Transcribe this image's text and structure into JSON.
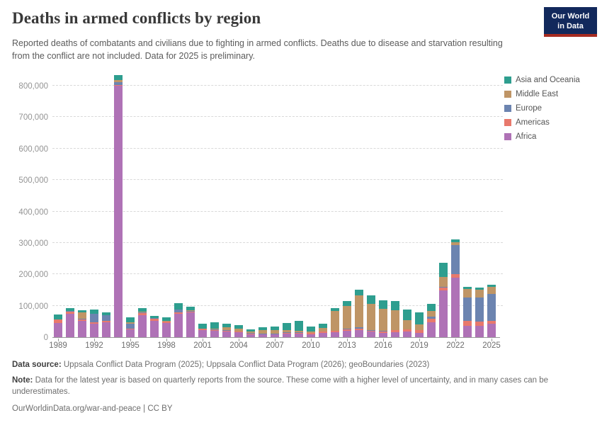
{
  "header": {
    "title": "Deaths in armed conflicts by region",
    "subtitle": "Reported deaths of combatants and civilians due to fighting in armed conflicts. Deaths due to disease and starvation resulting from the conflict are not included. Data for 2025 is preliminary.",
    "logo": {
      "line1": "Our World",
      "line2": "in Data",
      "bg_color": "#12295c",
      "accent_color": "#a62b21"
    }
  },
  "chart_data": {
    "type": "bar",
    "stacked": true,
    "title": "Deaths in armed conflicts by region",
    "xlabel": "",
    "ylabel": "",
    "ylim": [
      0,
      830000
    ],
    "grid": "horizontal-dashed",
    "legend_position": "top-right",
    "years": [
      1989,
      1990,
      1991,
      1992,
      1993,
      1994,
      1995,
      1996,
      1997,
      1998,
      1999,
      2000,
      2001,
      2002,
      2003,
      2004,
      2005,
      2006,
      2007,
      2008,
      2009,
      2010,
      2011,
      2012,
      2013,
      2014,
      2015,
      2016,
      2017,
      2018,
      2019,
      2020,
      2021,
      2022,
      2023,
      2024,
      2025
    ],
    "x_tick_labels": [
      "1989",
      "1992",
      "1995",
      "1998",
      "2001",
      "2004",
      "2007",
      "2010",
      "2013",
      "2016",
      "2019",
      "2022",
      "2025"
    ],
    "y_ticks": [
      0,
      100000,
      200000,
      300000,
      400000,
      500000,
      600000,
      700000,
      800000
    ],
    "y_tick_labels": [
      "0",
      "100,000",
      "200,000",
      "300,000",
      "400,000",
      "500,000",
      "600,000",
      "700,000",
      "800,000"
    ],
    "series": [
      {
        "name": "Africa",
        "color": "#AF72B6",
        "values": [
          45000,
          75000,
          52000,
          43000,
          47000,
          800000,
          25000,
          70000,
          52000,
          45000,
          75000,
          79000,
          22000,
          20000,
          18000,
          16000,
          10000,
          8000,
          8000,
          12000,
          12000,
          10000,
          13000,
          15000,
          21000,
          22000,
          17000,
          14000,
          16000,
          17000,
          14000,
          48000,
          148000,
          190000,
          37000,
          36000,
          42000
        ]
      },
      {
        "name": "Americas",
        "color": "#E8796C",
        "values": [
          11000,
          7000,
          5000,
          4000,
          4000,
          2000,
          3000,
          7000,
          7000,
          4000,
          5000,
          3000,
          4000,
          3000,
          3000,
          2000,
          2000,
          2000,
          2000,
          2000,
          2000,
          3000,
          4000,
          5000,
          4000,
          4000,
          4000,
          5000,
          6000,
          7000,
          8000,
          10000,
          10000,
          10000,
          14000,
          13000,
          11000
        ]
      },
      {
        "name": "Europe",
        "color": "#6C84B0",
        "values": [
          500,
          500,
          2000,
          27000,
          18000,
          10000,
          15000,
          2000,
          1000,
          1000,
          7000,
          2000,
          1000,
          1000,
          1000,
          1000,
          1000,
          1000,
          1000,
          1000,
          1000,
          1000,
          1000,
          1000,
          1000,
          5000,
          1000,
          1000,
          1000,
          1000,
          1000,
          7000,
          1000,
          93000,
          76000,
          77000,
          85000
        ]
      },
      {
        "name": "Middle East",
        "color": "#BF9566",
        "values": [
          1000,
          1000,
          20000,
          1000,
          1000,
          7000,
          4000,
          3000,
          1000,
          1000,
          1000,
          1000,
          1000,
          3000,
          10000,
          8000,
          5000,
          11000,
          12000,
          7000,
          5000,
          4000,
          12000,
          62000,
          74000,
          101000,
          85000,
          70000,
          62000,
          30000,
          17000,
          18000,
          33000,
          9000,
          26000,
          25000,
          21000
        ]
      },
      {
        "name": "Asia and Oceania",
        "color": "#2E9E8F",
        "values": [
          14000,
          10000,
          7000,
          13000,
          9000,
          14000,
          16000,
          11000,
          7000,
          13000,
          20000,
          12000,
          15000,
          20000,
          11000,
          11000,
          6000,
          10000,
          11000,
          24000,
          33000,
          17000,
          12000,
          10000,
          15000,
          20000,
          26000,
          27000,
          29000,
          33000,
          38000,
          23000,
          44000,
          8000,
          7000,
          7000,
          7000
        ]
      }
    ],
    "legend_order_top_to_bottom": [
      "Asia and Oceania",
      "Middle East",
      "Europe",
      "Americas",
      "Africa"
    ]
  },
  "footer": {
    "source_label": "Data source:",
    "source_text": " Uppsala Conflict Data Program (2025); Uppsala Conflict Data Program (2026); geoBoundaries (2023)",
    "note_label": "Note:",
    "note_text": " Data for the latest year is based on quarterly reports from the source. These come with a higher level of uncertainty, and in many cases can be underestimates.",
    "link": "OurWorldinData.org/war-and-peace",
    "separator": " | ",
    "license": "CC BY"
  }
}
